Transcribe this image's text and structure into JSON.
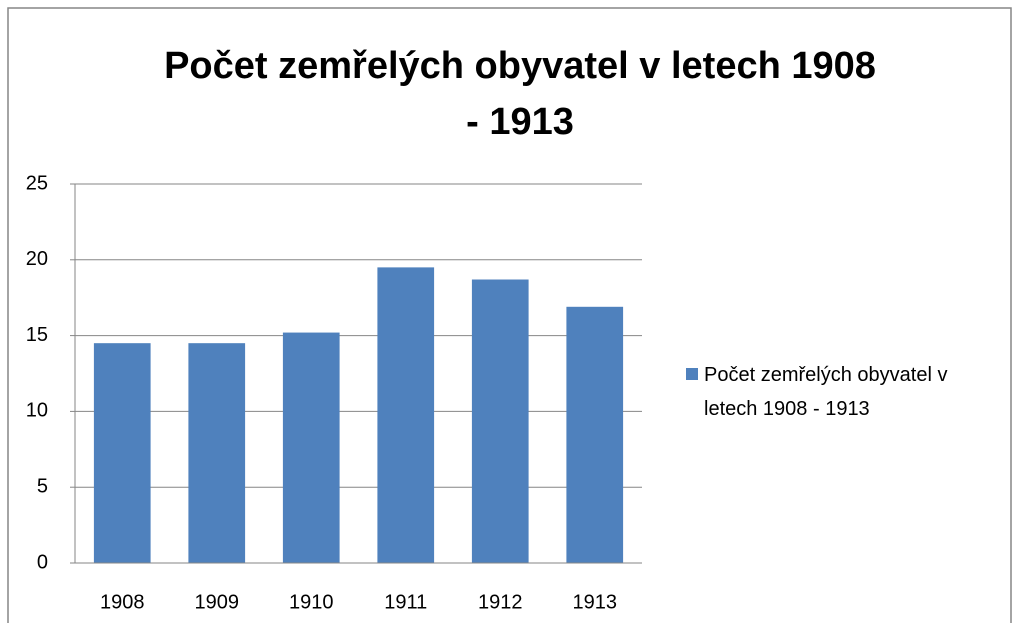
{
  "chart_data": {
    "type": "bar",
    "title": "Počet zemřelých obyvatel v letech 1908 - 1913",
    "categories": [
      "1908",
      "1909",
      "1910",
      "1911",
      "1912",
      "1913"
    ],
    "series": [
      {
        "name": "Počet zemřelých obyvatel v letech 1908 - 1913",
        "color": "#4f81bd",
        "values": [
          14.5,
          14.5,
          15.2,
          19.5,
          18.7,
          16.9
        ]
      }
    ],
    "ylim": [
      0,
      25
    ],
    "yticks": [
      0,
      5,
      10,
      15,
      20,
      25
    ],
    "grid": true,
    "legend": "right"
  }
}
